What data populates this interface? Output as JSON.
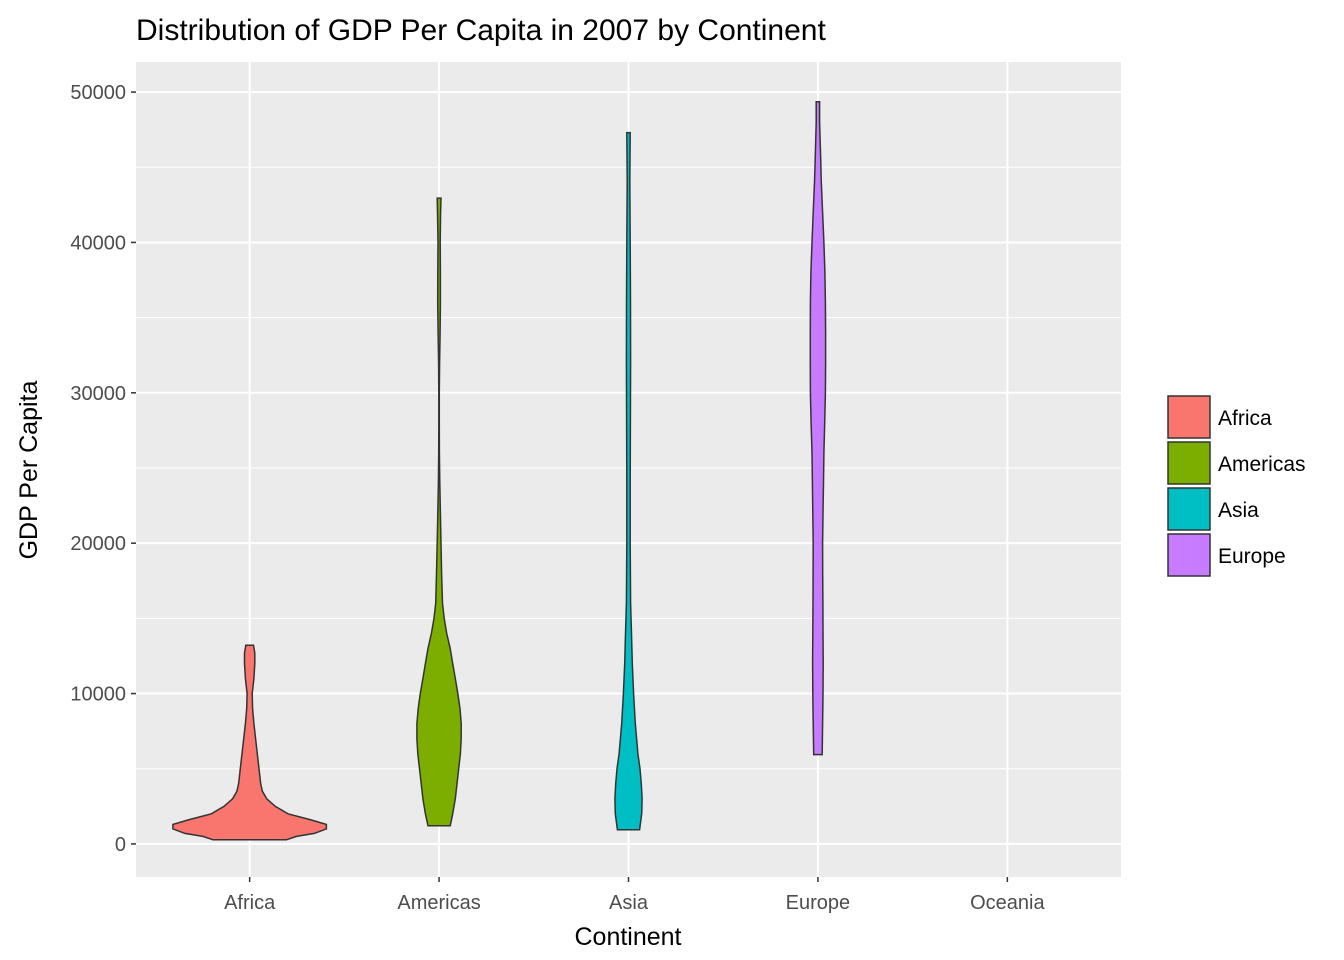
{
  "chart_data": {
    "type": "violin",
    "title": "Distribution of GDP Per Capita in 2007 by Continent",
    "xlabel": "Continent",
    "ylabel": "GDP Per Capita",
    "categories": [
      "Africa",
      "Americas",
      "Asia",
      "Europe",
      "Oceania"
    ],
    "ylim": [
      -2200,
      52000
    ],
    "yticks": [
      0,
      10000,
      20000,
      30000,
      40000,
      50000
    ],
    "grid": true,
    "legend_position": "right",
    "legend": [
      "Africa",
      "Americas",
      "Asia",
      "Europe"
    ],
    "colors": {
      "Africa": "#F8766D",
      "Americas": "#7CAE00",
      "Asia": "#00BFC4",
      "Europe": "#C77CFF",
      "outline": "#333333",
      "panel": "#EBEBEB",
      "grid": "#FFFFFF"
    },
    "series": [
      {
        "name": "Africa",
        "category": "Africa",
        "min": 277,
        "max": 13206,
        "profile": [
          [
            277,
            0.43
          ],
          [
            500,
            0.55
          ],
          [
            700,
            0.76
          ],
          [
            1000,
            0.9
          ],
          [
            1300,
            0.9
          ],
          [
            1600,
            0.72
          ],
          [
            2000,
            0.45
          ],
          [
            2500,
            0.3
          ],
          [
            3000,
            0.2
          ],
          [
            3500,
            0.15
          ],
          [
            4000,
            0.13
          ],
          [
            5000,
            0.11
          ],
          [
            6000,
            0.09
          ],
          [
            7000,
            0.07
          ],
          [
            8000,
            0.05
          ],
          [
            9000,
            0.035
          ],
          [
            10000,
            0.03
          ],
          [
            11000,
            0.05
          ],
          [
            12000,
            0.06
          ],
          [
            12700,
            0.06
          ],
          [
            13206,
            0.045
          ]
        ]
      },
      {
        "name": "Americas",
        "category": "Americas",
        "min": 1202,
        "max": 42952,
        "profile": [
          [
            1202,
            0.13
          ],
          [
            2000,
            0.16
          ],
          [
            3000,
            0.19
          ],
          [
            4000,
            0.21
          ],
          [
            5000,
            0.23
          ],
          [
            6000,
            0.25
          ],
          [
            7000,
            0.26
          ],
          [
            8000,
            0.26
          ],
          [
            9000,
            0.245
          ],
          [
            10000,
            0.22
          ],
          [
            11000,
            0.19
          ],
          [
            12000,
            0.16
          ],
          [
            13000,
            0.13
          ],
          [
            14000,
            0.09
          ],
          [
            15000,
            0.06
          ],
          [
            16000,
            0.04
          ],
          [
            18000,
            0.03
          ],
          [
            20000,
            0.022
          ],
          [
            22000,
            0.015
          ],
          [
            24000,
            0.008
          ],
          [
            26000,
            0.004
          ],
          [
            28000,
            0.003
          ],
          [
            30000,
            0.003
          ],
          [
            32000,
            0.006
          ],
          [
            34000,
            0.012
          ],
          [
            36000,
            0.016
          ],
          [
            38000,
            0.015
          ],
          [
            40000,
            0.013
          ],
          [
            42000,
            0.018
          ],
          [
            42952,
            0.022
          ]
        ]
      },
      {
        "name": "Asia",
        "category": "Asia",
        "min": 944,
        "max": 47307,
        "profile": [
          [
            944,
            0.13
          ],
          [
            2000,
            0.155
          ],
          [
            3000,
            0.16
          ],
          [
            4000,
            0.15
          ],
          [
            5000,
            0.135
          ],
          [
            6000,
            0.11
          ],
          [
            8000,
            0.08
          ],
          [
            10000,
            0.06
          ],
          [
            12000,
            0.045
          ],
          [
            14000,
            0.035
          ],
          [
            16000,
            0.025
          ],
          [
            18000,
            0.022
          ],
          [
            20000,
            0.02
          ],
          [
            24000,
            0.02
          ],
          [
            28000,
            0.022
          ],
          [
            32000,
            0.025
          ],
          [
            36000,
            0.024
          ],
          [
            40000,
            0.02
          ],
          [
            44000,
            0.015
          ],
          [
            47307,
            0.02
          ]
        ]
      },
      {
        "name": "Europe",
        "category": "Europe",
        "min": 5937,
        "max": 49357,
        "profile": [
          [
            5937,
            0.05
          ],
          [
            8000,
            0.055
          ],
          [
            10000,
            0.06
          ],
          [
            12000,
            0.062
          ],
          [
            14000,
            0.06
          ],
          [
            16000,
            0.058
          ],
          [
            18000,
            0.056
          ],
          [
            20000,
            0.055
          ],
          [
            22000,
            0.06
          ],
          [
            24000,
            0.065
          ],
          [
            26000,
            0.07
          ],
          [
            28000,
            0.08
          ],
          [
            30000,
            0.088
          ],
          [
            32000,
            0.09
          ],
          [
            34000,
            0.09
          ],
          [
            36000,
            0.088
          ],
          [
            38000,
            0.082
          ],
          [
            40000,
            0.07
          ],
          [
            42000,
            0.055
          ],
          [
            44000,
            0.04
          ],
          [
            46000,
            0.03
          ],
          [
            48000,
            0.02
          ],
          [
            49357,
            0.02
          ]
        ]
      }
    ]
  }
}
